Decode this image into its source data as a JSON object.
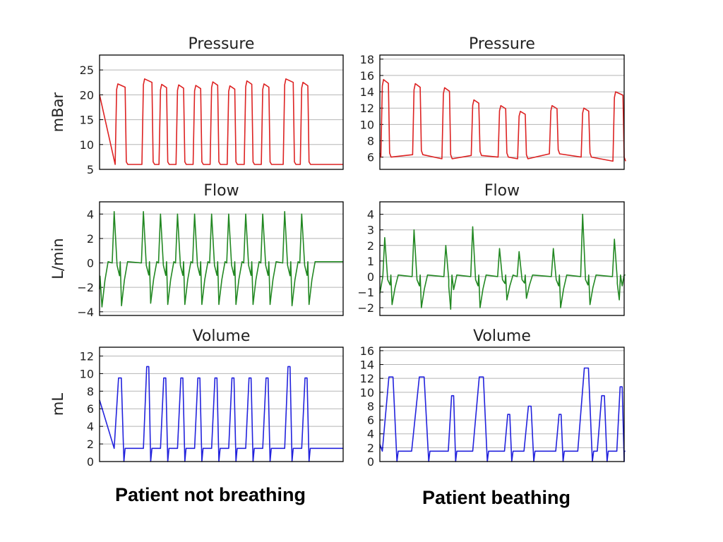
{
  "captions": {
    "left": "Patient not breathing",
    "right": "Patient beathing"
  },
  "chart_data": [
    {
      "type": "line",
      "id": "pressure-left",
      "title": "Pressure",
      "ylabel": "mBar",
      "color": "#dd2222",
      "ylim": [
        5,
        28
      ],
      "yticks": [
        5,
        10,
        15,
        20,
        25
      ],
      "xlim": [
        0,
        100
      ],
      "grid": "horizontal",
      "ticks_visible": true,
      "x": [
        0,
        1,
        2,
        4,
        5,
        6,
        7,
        8,
        9,
        14,
        15,
        16,
        17,
        18,
        19,
        20,
        21,
        22,
        23,
        26,
        27,
        28,
        29,
        30,
        31,
        32,
        33,
        34,
        35,
        36,
        37,
        38,
        39,
        40,
        41,
        42,
        44,
        45,
        46,
        47,
        48,
        49,
        50,
        51,
        52,
        53,
        54,
        55,
        56,
        57,
        58,
        59,
        60,
        61,
        62,
        63,
        64,
        66,
        67,
        68,
        69,
        70,
        71,
        72,
        73,
        74,
        75,
        76,
        77,
        78,
        79,
        80,
        82,
        83,
        84,
        85,
        86,
        87,
        88,
        89,
        90,
        91,
        92,
        93,
        94,
        95,
        96,
        97,
        98,
        100
      ],
      "y": [
        20,
        6.5,
        6,
        6.2,
        6,
        6,
        6,
        21.5,
        22,
        21.5,
        6,
        6,
        6,
        6,
        6,
        6,
        6,
        6,
        6.3,
        6.3,
        23.2,
        23,
        6,
        6,
        22,
        22,
        6,
        6,
        22,
        22,
        6,
        6,
        21.8,
        21.8,
        6,
        6,
        22.5,
        22.5,
        6,
        6,
        21.8,
        21.8,
        6,
        6,
        22.8,
        22.8,
        6,
        6,
        22.2,
        22.2,
        6,
        6,
        6,
        6,
        6,
        6,
        6,
        6,
        6,
        6,
        23,
        23,
        6,
        6,
        22.5,
        22.5,
        6,
        6,
        6,
        6,
        6,
        6,
        6,
        6,
        6,
        6,
        6,
        6,
        6,
        6,
        6,
        6,
        6,
        6,
        6,
        6,
        6,
        6,
        6,
        6
      ],
      "peaks": [
        [
          7,
          11,
          22.2
        ],
        [
          18,
          22,
          23.2
        ],
        [
          25,
          28,
          22.1
        ],
        [
          32,
          35,
          22.0
        ],
        [
          39,
          42,
          21.9
        ],
        [
          46,
          49,
          22.6
        ],
        [
          53,
          56,
          21.8
        ],
        [
          60,
          63,
          22.8
        ],
        [
          67,
          70,
          22.2
        ],
        [
          76,
          80,
          23.2
        ],
        [
          83,
          86,
          22.5
        ]
      ]
    },
    {
      "type": "line",
      "id": "pressure-right",
      "title": "Pressure",
      "ylabel": "",
      "color": "#dd2222",
      "ylim": [
        4.5,
        18.5
      ],
      "yticks": [
        6,
        8,
        10,
        12,
        14,
        16,
        18
      ],
      "xlim": [
        0,
        100
      ],
      "grid": "horizontal",
      "ticks_visible": true,
      "peaks": [
        [
          1,
          4,
          15.5
        ],
        [
          14,
          17,
          15.0
        ],
        [
          26,
          29,
          14.5
        ],
        [
          38,
          41,
          13.0
        ],
        [
          49,
          52,
          12.3
        ],
        [
          57,
          60,
          11.6
        ],
        [
          70,
          73,
          12.3
        ],
        [
          83,
          86,
          12.0
        ],
        [
          96,
          100,
          14.0
        ]
      ],
      "baseline": [
        6,
        6.3,
        5.8,
        6.2,
        6.0,
        5.8,
        6.4,
        6.0,
        5.5,
        6.0
      ]
    },
    {
      "type": "line",
      "id": "flow-left",
      "title": "Flow",
      "ylabel": "L/min",
      "color": "#228822",
      "ylim": [
        -4.3,
        5
      ],
      "yticks": [
        -4,
        -2,
        0,
        2,
        4
      ],
      "xlim": [
        0,
        100
      ],
      "grid": "horizontal",
      "ticks_visible": true,
      "peaks_x": [
        6,
        18,
        25,
        32,
        39,
        46,
        53,
        60,
        67,
        76,
        83
      ],
      "peaks_y": [
        4.2,
        4.2,
        4.0,
        4.0,
        4.0,
        4.0,
        4.0,
        4.0,
        4.0,
        4.2,
        4.0
      ],
      "troughs_x": [
        1,
        9,
        21,
        28,
        35,
        42,
        49,
        56,
        63,
        70,
        79,
        86
      ],
      "troughs_y": [
        -3.6,
        -3.5,
        -3.3,
        -3.4,
        -3.4,
        -3.4,
        -3.4,
        -3.4,
        -3.4,
        -3.4,
        -3.5,
        -3.4
      ]
    },
    {
      "type": "line",
      "id": "flow-right",
      "title": "Flow",
      "ylabel": "",
      "color": "#228822",
      "ylim": [
        -2.5,
        4.8
      ],
      "yticks": [
        -2,
        -1,
        0,
        1,
        2,
        3,
        4
      ],
      "xlim": [
        0,
        100
      ],
      "grid": "horizontal",
      "ticks_visible": true,
      "peaks_x": [
        2,
        14,
        27,
        38,
        49,
        57,
        71,
        83,
        96
      ],
      "peaks_y": [
        2.5,
        3.0,
        2.0,
        3.2,
        1.8,
        1.6,
        1.8,
        4.0,
        2.4
      ],
      "troughs_x": [
        5,
        17,
        29,
        41,
        52,
        60,
        74,
        86,
        98
      ],
      "troughs_y": [
        -1.8,
        -2.0,
        -2.1,
        -2.0,
        -1.5,
        -1.4,
        -2.0,
        -1.8,
        -1.5
      ]
    },
    {
      "type": "line",
      "id": "volume-left",
      "title": "Volume",
      "ylabel": "mL",
      "color": "#2222dd",
      "ylim": [
        0,
        13
      ],
      "yticks": [
        0,
        2,
        4,
        6,
        8,
        10,
        12
      ],
      "xlim": [
        0,
        100
      ],
      "grid": "horizontal",
      "ticks_visible": true,
      "pulses": [
        [
          6,
          10,
          9.5
        ],
        [
          18,
          21,
          10.8
        ],
        [
          25,
          28,
          9.5
        ],
        [
          32,
          35,
          9.5
        ],
        [
          39,
          42,
          9.5
        ],
        [
          46,
          49,
          9.5
        ],
        [
          53,
          56,
          9.5
        ],
        [
          60,
          63,
          9.5
        ],
        [
          67,
          70,
          9.5
        ],
        [
          76,
          79,
          10.8
        ],
        [
          83,
          86,
          9.5
        ]
      ],
      "floor": 1.5
    },
    {
      "type": "line",
      "id": "volume-right",
      "title": "Volume",
      "ylabel": "",
      "color": "#2222dd",
      "ylim": [
        0,
        16.5
      ],
      "yticks": [
        0,
        2,
        4,
        6,
        8,
        10,
        12,
        14,
        16
      ],
      "xlim": [
        0,
        100
      ],
      "grid": "horizontal",
      "ticks_visible": true,
      "pulses": [
        [
          1,
          7,
          12.2
        ],
        [
          13,
          20,
          12.2
        ],
        [
          28,
          31,
          9.5
        ],
        [
          38,
          44,
          12.2
        ],
        [
          51,
          54,
          6.8
        ],
        [
          59,
          63,
          8.0
        ],
        [
          72,
          75,
          6.8
        ],
        [
          81,
          87,
          13.5
        ],
        [
          89,
          93,
          9.5
        ],
        [
          97,
          100,
          10.8
        ]
      ],
      "floor": 1.5
    }
  ]
}
